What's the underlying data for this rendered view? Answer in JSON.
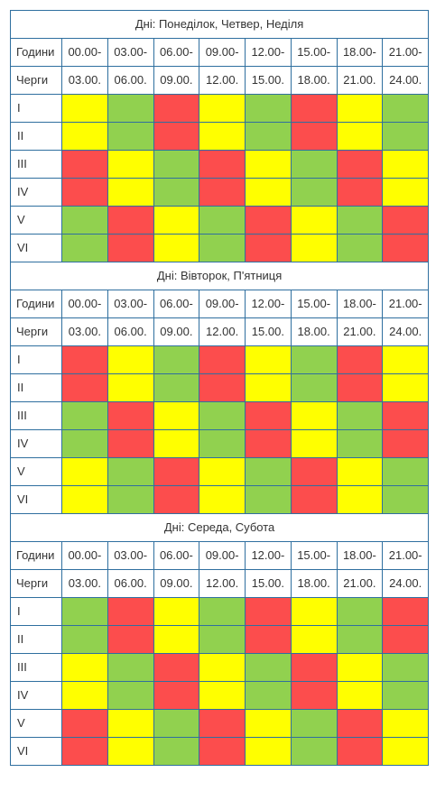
{
  "labels": {
    "hours": "Години",
    "queues": "Черги"
  },
  "time_starts": [
    "00.00-",
    "03.00-",
    "06.00-",
    "09.00-",
    "12.00-",
    "15.00-",
    "18.00-",
    "21.00-"
  ],
  "time_ends": [
    "03.00.",
    "06.00.",
    "09.00.",
    "12.00.",
    "15.00.",
    "18.00.",
    "21.00.",
    "24.00."
  ],
  "colors": {
    "R": "#fc4d4d",
    "Y": "#ffff00",
    "G": "#91d14f"
  },
  "sections": [
    {
      "title": "Дні: Понеділок, Четвер, Неділя",
      "rows": [
        {
          "queue": "I",
          "slots": [
            "Y",
            "G",
            "R",
            "Y",
            "G",
            "R",
            "Y",
            "G"
          ]
        },
        {
          "queue": "II",
          "slots": [
            "Y",
            "G",
            "R",
            "Y",
            "G",
            "R",
            "Y",
            "G"
          ]
        },
        {
          "queue": "III",
          "slots": [
            "R",
            "Y",
            "G",
            "R",
            "Y",
            "G",
            "R",
            "Y"
          ]
        },
        {
          "queue": "IV",
          "slots": [
            "R",
            "Y",
            "G",
            "R",
            "Y",
            "G",
            "R",
            "Y"
          ]
        },
        {
          "queue": "V",
          "slots": [
            "G",
            "R",
            "Y",
            "G",
            "R",
            "Y",
            "G",
            "R"
          ]
        },
        {
          "queue": "VI",
          "slots": [
            "G",
            "R",
            "Y",
            "G",
            "R",
            "Y",
            "G",
            "R"
          ]
        }
      ]
    },
    {
      "title": "Дні: Вівторок, П'ятниця",
      "rows": [
        {
          "queue": "I",
          "slots": [
            "R",
            "Y",
            "G",
            "R",
            "Y",
            "G",
            "R",
            "Y"
          ]
        },
        {
          "queue": "II",
          "slots": [
            "R",
            "Y",
            "G",
            "R",
            "Y",
            "G",
            "R",
            "Y"
          ]
        },
        {
          "queue": "III",
          "slots": [
            "G",
            "R",
            "Y",
            "G",
            "R",
            "Y",
            "G",
            "R"
          ]
        },
        {
          "queue": "IV",
          "slots": [
            "G",
            "R",
            "Y",
            "G",
            "R",
            "Y",
            "G",
            "R"
          ]
        },
        {
          "queue": "V",
          "slots": [
            "Y",
            "G",
            "R",
            "Y",
            "G",
            "R",
            "Y",
            "G"
          ]
        },
        {
          "queue": "VI",
          "slots": [
            "Y",
            "G",
            "R",
            "Y",
            "G",
            "R",
            "Y",
            "G"
          ]
        }
      ]
    },
    {
      "title": "Дні: Середа, Субота",
      "rows": [
        {
          "queue": "I",
          "slots": [
            "G",
            "R",
            "Y",
            "G",
            "R",
            "Y",
            "G",
            "R"
          ]
        },
        {
          "queue": "II",
          "slots": [
            "G",
            "R",
            "Y",
            "G",
            "R",
            "Y",
            "G",
            "R"
          ]
        },
        {
          "queue": "III",
          "slots": [
            "Y",
            "G",
            "R",
            "Y",
            "G",
            "R",
            "Y",
            "G"
          ]
        },
        {
          "queue": "IV",
          "slots": [
            "Y",
            "G",
            "R",
            "Y",
            "G",
            "R",
            "Y",
            "G"
          ]
        },
        {
          "queue": "V",
          "slots": [
            "R",
            "Y",
            "G",
            "R",
            "Y",
            "G",
            "R",
            "Y"
          ]
        },
        {
          "queue": "VI",
          "slots": [
            "R",
            "Y",
            "G",
            "R",
            "Y",
            "G",
            "R",
            "Y"
          ]
        }
      ]
    }
  ]
}
